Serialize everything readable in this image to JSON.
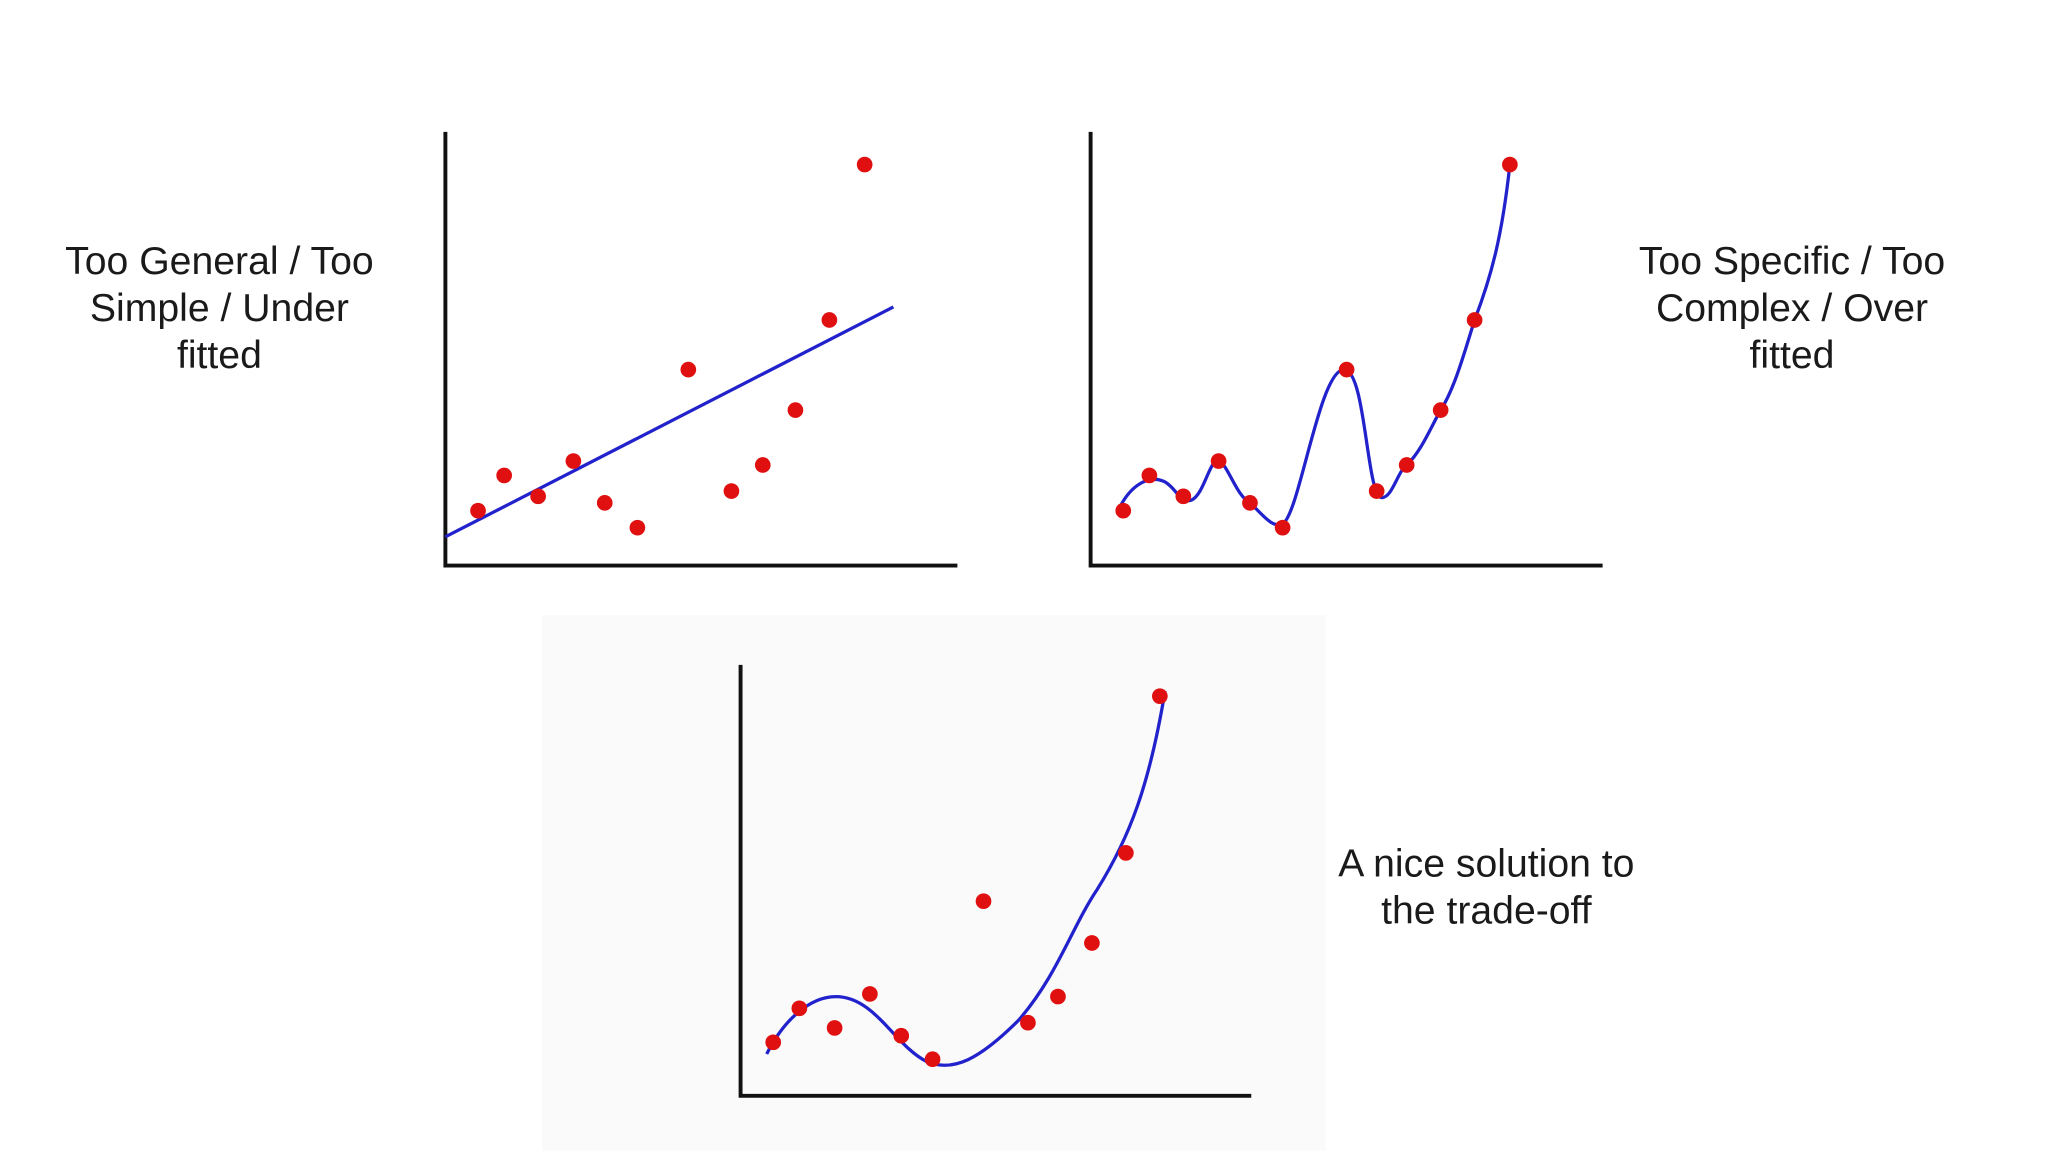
{
  "labels": [
    {
      "lines": [
        "Too General / Too",
        "Simple / Under",
        "fitted"
      ]
    },
    {
      "lines": [
        "Too Specific / Too",
        "Complex / Over",
        "fitted"
      ]
    },
    {
      "lines": [
        "A nice solution to",
        "the trade-off"
      ]
    }
  ]
}
